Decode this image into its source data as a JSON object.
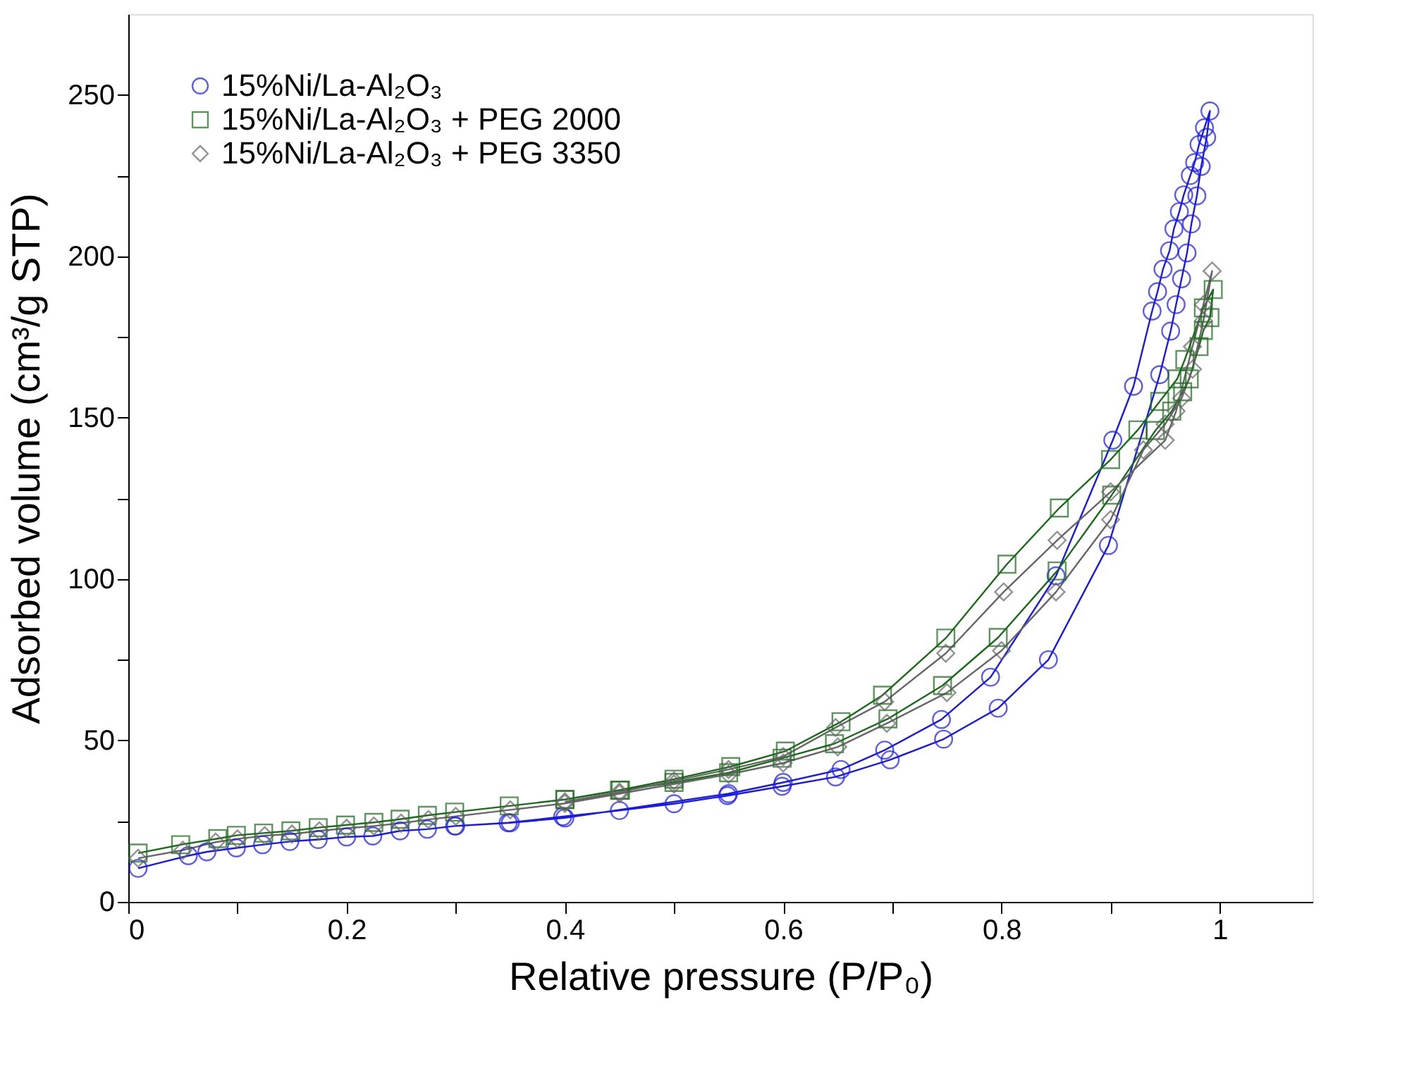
{
  "chart_data": {
    "type": "line",
    "xlabel": "Relative pressure (P/P₀)",
    "ylabel": "Adsorbed volume (cm³/g STP)",
    "xlim": [
      0,
      1.085
    ],
    "ylim": [
      0,
      275
    ],
    "xticks": [
      0,
      {
        "value": 0.1,
        "label": null
      },
      0.2,
      {
        "value": 0.3,
        "label": null
      },
      0.4,
      {
        "value": 0.5,
        "label": null
      },
      0.6,
      {
        "value": 0.7,
        "label": null
      },
      0.8,
      {
        "value": 0.9,
        "label": null
      },
      1
    ],
    "yticks": [
      0,
      {
        "value": 25,
        "label": null
      },
      50,
      {
        "value": 75,
        "label": null
      },
      100,
      {
        "value": 125,
        "label": null
      },
      150,
      {
        "value": 175,
        "label": null
      },
      200,
      {
        "value": 225,
        "label": null
      },
      250
    ],
    "grid": false,
    "legend": "top left",
    "line_style": "solid",
    "series": [
      {
        "name": "15%Ni/La-Al₂O₃",
        "color": "#1a1ae6",
        "marker": "circle",
        "x": [
          0.009,
          0.055,
          0.072,
          0.099,
          0.123,
          0.148,
          0.174,
          0.2,
          0.224,
          0.249,
          0.274,
          0.299,
          0.348,
          0.398,
          0.45,
          0.5,
          0.549,
          0.599,
          0.648,
          0.698,
          0.747,
          0.797,
          0.843,
          0.898,
          0.945,
          0.955,
          0.96,
          0.965,
          0.97,
          0.974,
          0.979,
          0.983,
          0.988,
          0.991,
          0.986,
          0.981,
          0.977,
          0.973,
          0.967,
          0.963,
          0.958,
          0.954,
          0.948,
          0.943,
          0.938,
          0.921,
          0.902,
          0.85,
          0.79,
          0.745,
          0.693,
          0.653,
          0.6,
          0.55,
          0.4,
          0.35,
          0.3
        ],
        "values": [
          10.4,
          14.3,
          15.5,
          16.7,
          17.7,
          18.7,
          19.3,
          20.1,
          20.4,
          22,
          22.5,
          23.5,
          24.5,
          26.4,
          28.3,
          30.4,
          32.9,
          35.8,
          38.7,
          44,
          50.4,
          60,
          75,
          110.4,
          163.3,
          176.8,
          185,
          193,
          201,
          210,
          218.7,
          227.8,
          236.8,
          245,
          239.8,
          234.6,
          229,
          225,
          219,
          213.8,
          208.5,
          201.7,
          196,
          189,
          183,
          159.7,
          143,
          101,
          69.6,
          56.5,
          47,
          41,
          37,
          33.5,
          26,
          24.5,
          23.5
        ]
      },
      {
        "name": "15%Ni/La-Al₂O₃ + PEG 2000",
        "color": "#1a6b1a",
        "marker": "square",
        "x": [
          0.009,
          0.048,
          0.082,
          0.099,
          0.124,
          0.149,
          0.174,
          0.199,
          0.225,
          0.249,
          0.274,
          0.299,
          0.349,
          0.4,
          0.451,
          0.5,
          0.55,
          0.599,
          0.647,
          0.696,
          0.746,
          0.797,
          0.851,
          0.901,
          0.941,
          0.956,
          0.966,
          0.972,
          0.981,
          0.985,
          0.991,
          0.994,
          0.985,
          0.968,
          0.961,
          0.945,
          0.925,
          0.9,
          0.853,
          0.805,
          0.749,
          0.691,
          0.653,
          0.602,
          0.552,
          0.5,
          0.45,
          0.4
        ],
        "values": [
          15.1,
          17.7,
          19.6,
          20.6,
          21.3,
          22,
          23,
          23.8,
          24.6,
          25.6,
          26.8,
          27.8,
          29.7,
          31.7,
          34.6,
          37,
          40,
          44.5,
          49,
          56.7,
          67,
          81.9,
          102.5,
          126,
          146,
          152,
          158,
          162,
          172,
          177,
          181,
          189.7,
          184,
          168,
          162,
          155,
          146.2,
          137,
          122,
          104.6,
          81.7,
          64,
          55.8,
          46.7,
          41.9,
          38,
          34.6,
          31.7
        ]
      },
      {
        "name": "15%Ni/La-Al₂O₃ + PEG 3350",
        "color": "#666666",
        "marker": "diamond",
        "x": [
          0.009,
          0.05,
          0.08,
          0.1,
          0.125,
          0.15,
          0.175,
          0.2,
          0.225,
          0.25,
          0.275,
          0.3,
          0.35,
          0.4,
          0.45,
          0.5,
          0.55,
          0.6,
          0.65,
          0.695,
          0.75,
          0.8,
          0.85,
          0.9,
          0.93,
          0.95,
          0.965,
          0.975,
          0.985,
          0.993,
          0.985,
          0.975,
          0.96,
          0.95,
          0.9,
          0.851,
          0.802,
          0.749,
          0.693,
          0.648,
          0.6,
          0.55,
          0.5,
          0.45,
          0.4
        ],
        "values": [
          13.5,
          16,
          18.5,
          19.5,
          20.5,
          21,
          22,
          22.8,
          23.5,
          24.4,
          25.5,
          26.5,
          28.5,
          30.5,
          33.5,
          36.5,
          39.5,
          43,
          48,
          55.3,
          64.8,
          77.8,
          96,
          118.4,
          140,
          148,
          156,
          165,
          180,
          195.4,
          185,
          172,
          152,
          143,
          127,
          112,
          96,
          77,
          62,
          54,
          45,
          41,
          37.5,
          34,
          31
        ]
      }
    ]
  }
}
